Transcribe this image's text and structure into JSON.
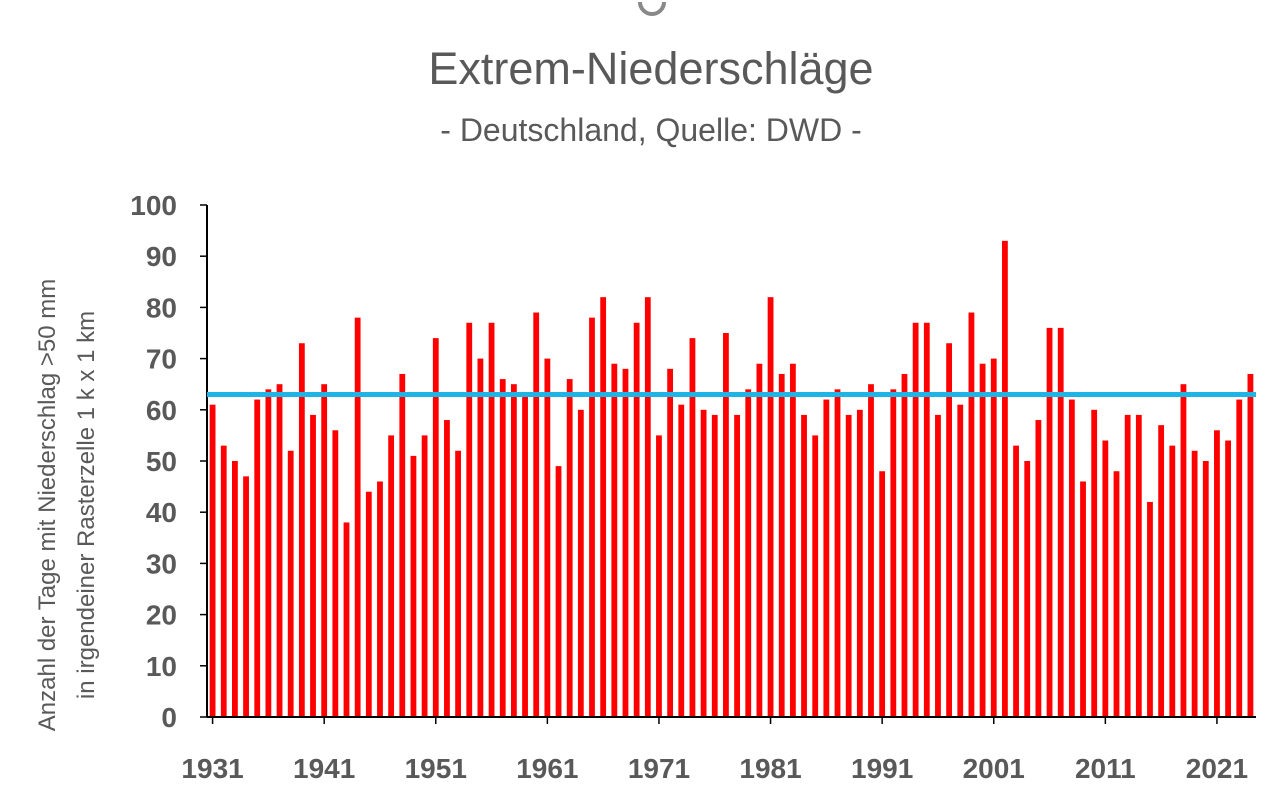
{
  "chart_data": {
    "type": "bar",
    "title": "Extrem-Niederschläge",
    "subtitle": "- Deutschland, Quelle: DWD -",
    "ylabel_lines": [
      "Anzahl der Tage mit Niederschlag >50 mm",
      "in irgendeiner Rasterzelle 1 k x 1 km"
    ],
    "ylim": [
      0,
      100
    ],
    "yticks": [
      0,
      10,
      20,
      30,
      40,
      50,
      60,
      70,
      80,
      90,
      100
    ],
    "xtick_labels": [
      "1931",
      "1941",
      "1951",
      "1961",
      "1971",
      "1981",
      "1991",
      "2001",
      "2011",
      "2021"
    ],
    "grid": false,
    "bar_color": "#ff0000",
    "mean_line": {
      "value": 63,
      "color": "#1fb4e6"
    },
    "x_start": 1931,
    "x": [
      1931,
      1932,
      1933,
      1934,
      1935,
      1936,
      1937,
      1938,
      1939,
      1940,
      1941,
      1942,
      1943,
      1944,
      1945,
      1946,
      1947,
      1948,
      1949,
      1950,
      1951,
      1952,
      1953,
      1954,
      1955,
      1956,
      1957,
      1958,
      1959,
      1960,
      1961,
      1962,
      1963,
      1964,
      1965,
      1966,
      1967,
      1968,
      1969,
      1970,
      1971,
      1972,
      1973,
      1974,
      1975,
      1976,
      1977,
      1978,
      1979,
      1980,
      1981,
      1982,
      1983,
      1984,
      1985,
      1986,
      1987,
      1988,
      1989,
      1990,
      1991,
      1992,
      1993,
      1994,
      1995,
      1996,
      1997,
      1998,
      1999,
      2000,
      2001,
      2002,
      2003,
      2004,
      2005,
      2006,
      2007,
      2008,
      2009,
      2010,
      2011,
      2012,
      2013,
      2014,
      2015,
      2016,
      2017,
      2018,
      2019,
      2020,
      2021,
      2022,
      2023,
      2024
    ],
    "values": [
      61,
      53,
      50,
      47,
      62,
      64,
      65,
      52,
      73,
      59,
      65,
      56,
      38,
      78,
      44,
      46,
      55,
      67,
      51,
      55,
      74,
      58,
      52,
      77,
      70,
      77,
      66,
      65,
      63,
      79,
      70,
      49,
      66,
      60,
      78,
      82,
      69,
      68,
      77,
      82,
      55,
      68,
      61,
      74,
      60,
      59,
      75,
      59,
      64,
      69,
      82,
      67,
      69,
      59,
      55,
      62,
      64,
      59,
      60,
      65,
      48,
      64,
      67,
      77,
      77,
      59,
      73,
      61,
      79,
      69,
      70,
      93,
      53,
      50,
      58,
      76,
      76,
      62,
      46,
      60,
      54,
      48,
      59,
      59,
      42,
      57,
      53,
      65,
      52,
      50,
      56,
      54,
      62,
      67
    ]
  }
}
